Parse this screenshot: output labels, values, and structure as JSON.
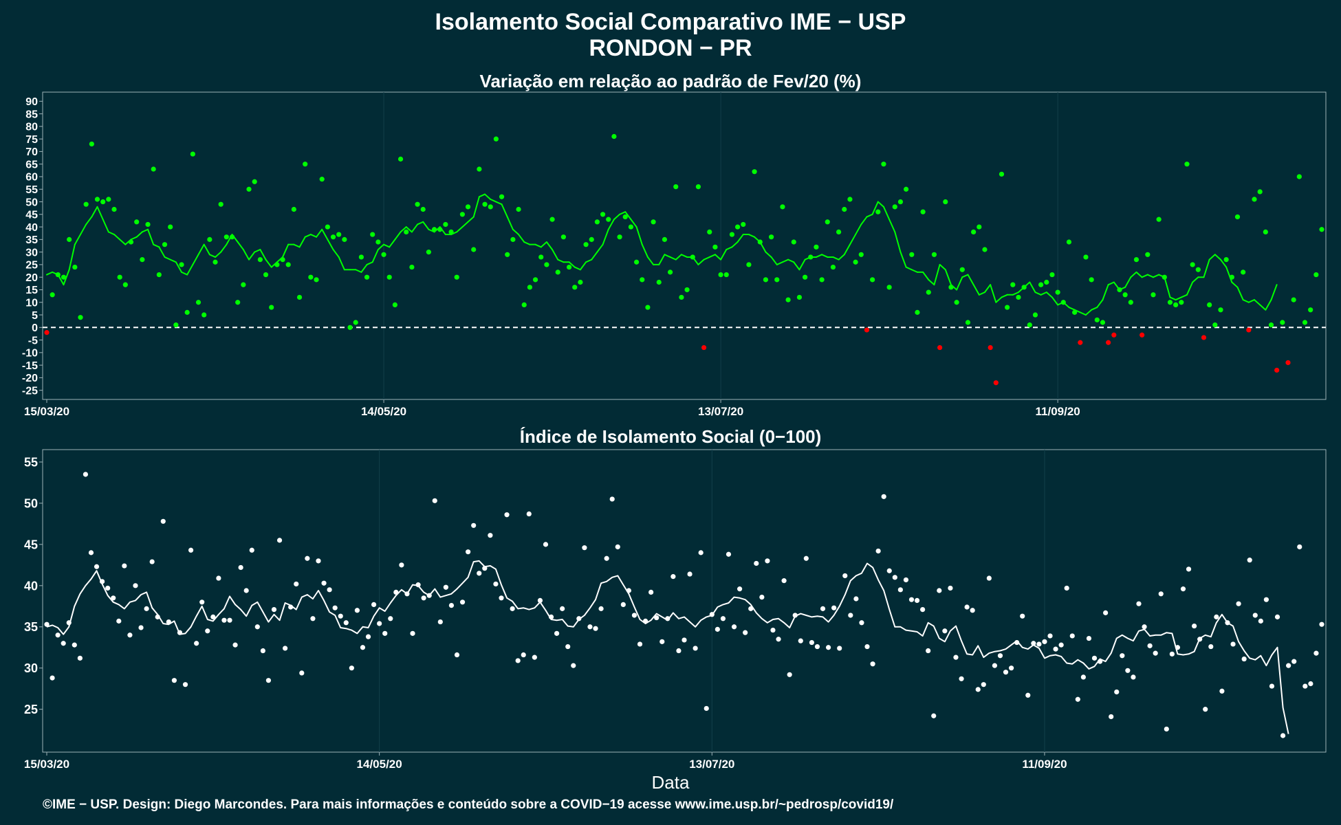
{
  "title_line1": "Isolamento Social Comparativo IME − USP",
  "title_line2": "RONDON − PR",
  "xlabel": "Data",
  "footer": "©IME − USP. Design: Diego Marcondes. Para mais informações e conteúdo sobre a COVID−19 acesse www.ime.usp.br/~pedrosp/covid19/",
  "colors": {
    "background": "#022b35",
    "positive": "#00ff00",
    "negative": "#ff0000",
    "index": "#ffffff",
    "grid": "#133f4a"
  },
  "chart_data": [
    {
      "type": "scatter",
      "title": "Variação em relação ao padrão de Fev/20 (%)",
      "x_start": "15/03/20",
      "x_tick_labels": [
        "15/03/20",
        "14/05/20",
        "13/07/20",
        "11/09/20"
      ],
      "x_tick_offsets_days": [
        0,
        60,
        120,
        180
      ],
      "ylim": [
        -27,
        92
      ],
      "y_ticks": [
        -25,
        -20,
        -15,
        -10,
        -5,
        0,
        5,
        10,
        15,
        20,
        25,
        30,
        35,
        40,
        45,
        50,
        55,
        60,
        65,
        70,
        75,
        80,
        85,
        90
      ],
      "reference_line": 0,
      "series": [
        {
          "values": [
            -2,
            13,
            21,
            20,
            35,
            24,
            4,
            49,
            73,
            51,
            50,
            51,
            47,
            20,
            17,
            34,
            42,
            27,
            41,
            63,
            21,
            33,
            40,
            1,
            25,
            6,
            69,
            10,
            5,
            35,
            26,
            49,
            36,
            36,
            10,
            17,
            55,
            58,
            27,
            21,
            8,
            25,
            27,
            25,
            47,
            12,
            65,
            20,
            19,
            59,
            40,
            36,
            37,
            35,
            0,
            2,
            28,
            20,
            37,
            34,
            29,
            20,
            9,
            67,
            38,
            24,
            49,
            47,
            30,
            39,
            39,
            41,
            38,
            20,
            45,
            48,
            31,
            63,
            49,
            48,
            75,
            52,
            29,
            35,
            47,
            9,
            16,
            19,
            28,
            25,
            43,
            22,
            36,
            24,
            16,
            18,
            33,
            35,
            42,
            45,
            43,
            76,
            36,
            44,
            40,
            26,
            19,
            8,
            42,
            18,
            35,
            22,
            56,
            12,
            15,
            28,
            56,
            -8,
            38,
            32,
            21,
            21,
            37,
            40,
            41,
            25,
            62,
            34,
            19,
            36,
            19,
            48,
            11,
            34,
            12,
            20,
            28,
            32,
            19,
            42,
            24,
            38,
            47,
            51,
            26,
            29,
            -1,
            19,
            46,
            65,
            16,
            48,
            50,
            55,
            29,
            6,
            46,
            14,
            29,
            -8,
            50,
            16,
            10,
            23,
            2,
            38,
            40,
            31,
            -8,
            -22,
            61,
            8,
            17,
            12,
            16,
            1,
            5,
            17,
            18,
            21,
            14,
            10,
            34,
            6,
            -6,
            28,
            19,
            3,
            2,
            -6,
            -3,
            15,
            13,
            10,
            27,
            -3,
            29,
            13,
            43,
            20,
            10,
            9,
            10,
            65,
            25,
            23,
            -4,
            9,
            1,
            7,
            27,
            20,
            44,
            22,
            -1,
            51,
            54,
            38,
            1,
            -17,
            2,
            -14,
            11,
            60,
            2,
            7,
            21,
            39
          ]
        },
        {
          "values": [
            21,
            22,
            21,
            17,
            23,
            33,
            37,
            41,
            44,
            48,
            43,
            38,
            37,
            35,
            33,
            35,
            36,
            38,
            39,
            33,
            32,
            28,
            27,
            26,
            22,
            21,
            25,
            29,
            33,
            29,
            28,
            30,
            33,
            37,
            34,
            31,
            27,
            30,
            31,
            27,
            24,
            26,
            28,
            33,
            33,
            32,
            36,
            37,
            36,
            39,
            35,
            31,
            28,
            23,
            23,
            23,
            22,
            25,
            26,
            31,
            33,
            32,
            35,
            38,
            40,
            38,
            41,
            42,
            39,
            38,
            40,
            37,
            37,
            38,
            40,
            42,
            44,
            52,
            53,
            51,
            50,
            49,
            44,
            39,
            37,
            34,
            33,
            33,
            32,
            34,
            31,
            27,
            26,
            26,
            24,
            23,
            26,
            27,
            30,
            33,
            39,
            43,
            45,
            46,
            43,
            40,
            33,
            28,
            25,
            25,
            29,
            28,
            27,
            29,
            28,
            28,
            25,
            27,
            28,
            29,
            27,
            31,
            32,
            34,
            37,
            37,
            36,
            34,
            30,
            28,
            25,
            26,
            27,
            26,
            23,
            27,
            28,
            28,
            29,
            28,
            28,
            27,
            29,
            33,
            37,
            41,
            44,
            45,
            50,
            48,
            43,
            38,
            30,
            24,
            23,
            22,
            22,
            19,
            17,
            25,
            23,
            17,
            15,
            20,
            21,
            17,
            13,
            14,
            17,
            10,
            12,
            13,
            13,
            14,
            16,
            18,
            14,
            13,
            14,
            12,
            9,
            10,
            8,
            7,
            6,
            5,
            7,
            8,
            11,
            17,
            18,
            15,
            16,
            20,
            22,
            20,
            21,
            20,
            21,
            20,
            12,
            11,
            12,
            13,
            18,
            20,
            20,
            27,
            29,
            27,
            24,
            18,
            16,
            11,
            10,
            11,
            9,
            7,
            11,
            17
          ]
        }
      ]
    },
    {
      "type": "scatter",
      "title": "Índice de Isolamento Social (0−100)",
      "x_start": "15/03/20",
      "x_tick_labels": [
        "15/03/20",
        "14/05/20",
        "13/07/20",
        "11/09/20"
      ],
      "x_tick_offsets_days": [
        0,
        60,
        120,
        180
      ],
      "ylim": [
        20.3,
        56
      ],
      "y_ticks": [
        25,
        30,
        35,
        40,
        45,
        50,
        55
      ],
      "series": [
        {
          "values": [
            35.3,
            28.8,
            34.0,
            33.0,
            35.5,
            32.8,
            31.2,
            53.5,
            44.0,
            42.3,
            40.5,
            39.7,
            38.5,
            35.7,
            42.4,
            34.0,
            40.0,
            34.9,
            37.2,
            42.9,
            36.2,
            47.8,
            35.6,
            28.5,
            34.3,
            28.0,
            44.3,
            33.0,
            38.0,
            34.5,
            36.2,
            40.9,
            35.8,
            35.8,
            32.8,
            42.2,
            39.4,
            44.3,
            35.0,
            32.1,
            28.5,
            37.1,
            45.5,
            32.4,
            37.4,
            40.2,
            29.4,
            43.3,
            36.0,
            43.0,
            40.3,
            39.5,
            37.3,
            36.3,
            35.5,
            30.0,
            37.0,
            32.5,
            33.8,
            37.7,
            35.4,
            34.2,
            36.0,
            39.2,
            42.5,
            39.0,
            34.2,
            40.1,
            38.5,
            38.8,
            50.3,
            35.6,
            39.8,
            37.6,
            31.6,
            38.0,
            44.1,
            47.3,
            41.5,
            42.1,
            46.1,
            40.2,
            38.5,
            48.6,
            37.2,
            30.9,
            31.6,
            48.7,
            31.3,
            38.2,
            45.0,
            36.2,
            34.2,
            37.2,
            32.6,
            30.3,
            36.0,
            44.6,
            35.0,
            34.8,
            37.2,
            43.3,
            50.5,
            44.7,
            37.7,
            39.4,
            36.4,
            32.9,
            35.7,
            39.2,
            36.1,
            33.2,
            36.0,
            41.1,
            32.1,
            33.4,
            41.4,
            32.4,
            44.0,
            25.1,
            36.5,
            34.7,
            36.0,
            43.8,
            35.0,
            39.6,
            34.3,
            37.2,
            42.7,
            38.6,
            43.0,
            34.6,
            33.5,
            40.6,
            29.2,
            36.4,
            33.3,
            43.3,
            33.1,
            32.6,
            37.2,
            32.5,
            37.3,
            32.4,
            41.2,
            36.4,
            38.4,
            35.5,
            32.6,
            30.5,
            44.2,
            50.8,
            41.8,
            41.0,
            39.5,
            40.7,
            38.3,
            38.2,
            37.1,
            32.1,
            24.2,
            39.4,
            34.5,
            39.7,
            31.3,
            28.7,
            37.4,
            37.0,
            27.4,
            28.0,
            40.9,
            30.3,
            31.5,
            29.5,
            30.0,
            33.1,
            36.3,
            26.7,
            33.0,
            32.9,
            33.2,
            33.9,
            32.3,
            32.8,
            39.7,
            33.9,
            26.2,
            28.9,
            33.6,
            31.2,
            30.8,
            36.7,
            24.1,
            27.1,
            31.5,
            29.7,
            28.9,
            37.8,
            35.0,
            32.7,
            31.8,
            39.0,
            22.6,
            31.7,
            32.5,
            39.6,
            42.0,
            35.1,
            33.5,
            25.0,
            32.6,
            36.2,
            27.2,
            35.5,
            32.9,
            37.8,
            31.1,
            43.1,
            36.4,
            35.7,
            38.3,
            27.8,
            36.2,
            21.8,
            30.3,
            30.8,
            44.7,
            27.8,
            28.1,
            31.8,
            35.3
          ]
        },
        {
          "values": [
            35.0,
            35.2,
            34.9,
            34.1,
            35.0,
            37.5,
            39.0,
            40.0,
            40.8,
            41.8,
            40.2,
            38.8,
            38.0,
            37.7,
            37.2,
            38.0,
            38.2,
            38.9,
            39.2,
            37.3,
            36.5,
            35.4,
            35.3,
            35.7,
            34.1,
            34.2,
            35.0,
            36.3,
            37.5,
            35.9,
            35.7,
            36.5,
            37.2,
            38.7,
            37.7,
            37.1,
            36.3,
            37.6,
            38.0,
            36.8,
            35.6,
            36.5,
            35.8,
            37.9,
            37.6,
            37.1,
            38.6,
            38.9,
            38.4,
            39.4,
            38.2,
            36.8,
            36.4,
            34.9,
            34.8,
            34.6,
            34.2,
            35.0,
            34.9,
            36.3,
            37.3,
            36.9,
            37.9,
            38.8,
            39.5,
            39.0,
            40.1,
            40.0,
            39.2,
            38.8,
            39.6,
            38.6,
            38.8,
            39.0,
            39.6,
            40.3,
            41.0,
            42.9,
            43.0,
            42.3,
            42.4,
            42.0,
            40.1,
            38.5,
            38.1,
            37.2,
            37.3,
            37.1,
            37.3,
            38.0,
            37.0,
            35.9,
            35.8,
            35.9,
            35.1,
            35.0,
            35.9,
            36.4,
            37.3,
            38.3,
            40.3,
            40.5,
            41.0,
            41.2,
            40.1,
            39.0,
            37.4,
            35.9,
            35.4,
            35.8,
            36.6,
            36.2,
            35.8,
            36.7,
            36.0,
            36.2,
            35.6,
            35.0,
            35.8,
            36.2,
            36.4,
            37.4,
            37.7,
            37.9,
            38.6,
            38.5,
            38.3,
            37.7,
            36.7,
            36.0,
            35.5,
            35.9,
            36.0,
            35.5,
            34.9,
            36.3,
            36.6,
            36.4,
            36.2,
            36.3,
            36.2,
            35.6,
            36.4,
            37.5,
            38.9,
            40.6,
            41.2,
            41.5,
            42.7,
            42.2,
            40.7,
            39.4,
            37.1,
            35.0,
            35.0,
            34.6,
            34.5,
            34.4,
            33.9,
            35.5,
            35.1,
            33.6,
            33.2,
            34.5,
            35.1,
            33.3,
            31.7,
            31.6,
            32.7,
            31.3,
            31.8,
            32.0,
            32.1,
            32.3,
            32.8,
            33.3,
            32.5,
            32.3,
            32.8,
            32.4,
            31.2,
            31.5,
            31.6,
            31.4,
            30.6,
            30.5,
            31.0,
            30.6,
            29.9,
            30.2,
            31.1,
            30.8,
            31.8,
            33.6,
            34.0,
            33.6,
            33.3,
            34.5,
            34.7,
            33.9,
            34.0,
            34.0,
            34.3,
            34.2,
            31.7,
            31.6,
            31.7,
            32.0,
            33.6,
            34.0,
            33.8,
            35.5,
            36.5,
            35.5,
            35.1,
            33.2,
            32.1,
            31.2,
            31.0,
            31.5,
            30.3,
            31.6,
            32.5,
            25.2,
            22.0
          ]
        }
      ]
    }
  ]
}
